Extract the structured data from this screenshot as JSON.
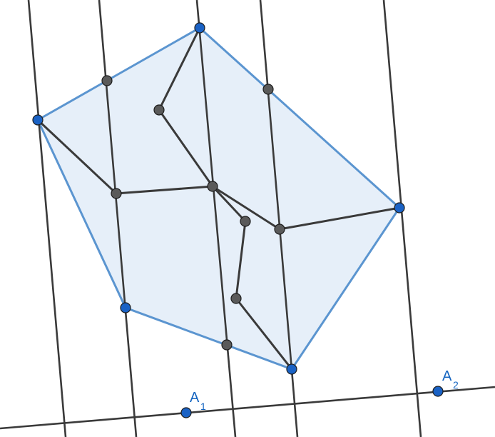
{
  "colors": {
    "polygon_fill": "#e6eff9",
    "polygon_stroke": "#5b95d0",
    "line_stroke": "#3a3a3a",
    "blue_point": "#1a62c5",
    "gray_point": "#5a5a5a",
    "point_outline": "#1d1d1d",
    "label": "#1565c0"
  },
  "labels": {
    "a1": {
      "main": "A",
      "sub": "1"
    },
    "a2": {
      "main": "A",
      "sub": "2"
    }
  }
}
